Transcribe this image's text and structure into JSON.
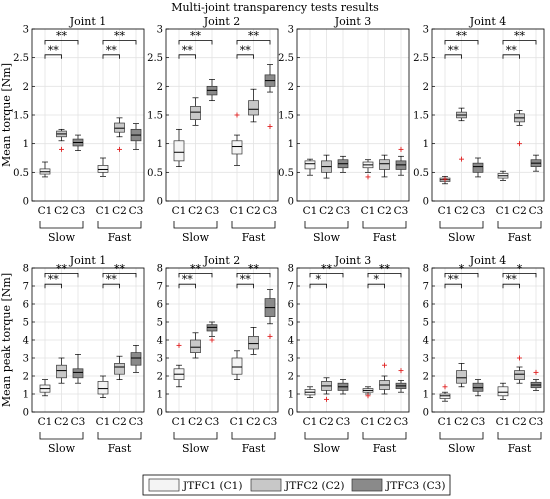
{
  "figure": {
    "title": "Multi-joint transparency tests results",
    "group_labels": [
      "Slow",
      "Fast"
    ],
    "condition_ticks": [
      "C1",
      "C2",
      "C3"
    ],
    "significance_marker": "**",
    "legend": [
      {
        "label": "JTFC1 (C1)",
        "color": "#f4f4f4"
      },
      {
        "label": "JTFC2 (C2)",
        "color": "#c8c8c8"
      },
      {
        "label": "JTFC3 (C3)",
        "color": "#8a8a8a"
      }
    ]
  },
  "chart_data": [
    {
      "type": "box",
      "row": 0,
      "col": 0,
      "title": "Joint 1",
      "ylabel": "Mean torque [Nm]",
      "ylim": [
        0,
        3
      ],
      "yticks": [
        "0",
        "0.5",
        "1",
        "1.5",
        "2",
        "2.5",
        "3"
      ],
      "groups": [
        {
          "name": "Slow",
          "boxes": [
            {
              "condition": "C1",
              "min": 0.42,
              "q1": 0.47,
              "median": 0.51,
              "q3": 0.56,
              "max": 0.68,
              "outliers": []
            },
            {
              "condition": "C2",
              "min": 1.05,
              "q1": 1.12,
              "median": 1.17,
              "q3": 1.22,
              "max": 1.25,
              "outliers": [
                0.9
              ]
            },
            {
              "condition": "C3",
              "min": 0.88,
              "q1": 0.96,
              "median": 1.02,
              "q3": 1.08,
              "max": 1.15,
              "outliers": []
            }
          ]
        },
        {
          "name": "Fast",
          "boxes": [
            {
              "condition": "C1",
              "min": 0.43,
              "q1": 0.5,
              "median": 0.55,
              "q3": 0.62,
              "max": 0.75,
              "outliers": []
            },
            {
              "condition": "C2",
              "min": 1.12,
              "q1": 1.2,
              "median": 1.27,
              "q3": 1.36,
              "max": 1.45,
              "outliers": [
                0.9
              ]
            },
            {
              "condition": "C3",
              "min": 0.9,
              "q1": 1.05,
              "median": 1.15,
              "q3": 1.25,
              "max": 1.35,
              "outliers": []
            }
          ]
        }
      ],
      "brackets": [
        {
          "group": 0,
          "from": 0,
          "to": 1,
          "label": "**",
          "y": 2.55
        },
        {
          "group": 0,
          "from": 0,
          "to": 2,
          "label": "**",
          "y": 2.8
        },
        {
          "group": 1,
          "from": 0,
          "to": 1,
          "label": "**",
          "y": 2.55
        },
        {
          "group": 1,
          "from": 0,
          "to": 2,
          "label": "**",
          "y": 2.8
        }
      ]
    },
    {
      "type": "box",
      "row": 0,
      "col": 1,
      "title": "Joint 2",
      "ylabel": "",
      "ylim": [
        0,
        3
      ],
      "yticks": [
        "0",
        "0.5",
        "1",
        "1.5",
        "2",
        "2.5",
        "3"
      ],
      "groups": [
        {
          "name": "Slow",
          "boxes": [
            {
              "condition": "C1",
              "min": 0.6,
              "q1": 0.7,
              "median": 0.85,
              "q3": 1.05,
              "max": 1.25,
              "outliers": []
            },
            {
              "condition": "C2",
              "min": 1.32,
              "q1": 1.42,
              "median": 1.55,
              "q3": 1.65,
              "max": 1.8,
              "outliers": []
            },
            {
              "condition": "C3",
              "min": 1.75,
              "q1": 1.85,
              "median": 1.93,
              "q3": 2.0,
              "max": 2.12,
              "outliers": []
            }
          ]
        },
        {
          "name": "Fast",
          "boxes": [
            {
              "condition": "C1",
              "min": 0.62,
              "q1": 0.82,
              "median": 0.95,
              "q3": 1.05,
              "max": 1.15,
              "outliers": [
                1.5
              ]
            },
            {
              "condition": "C2",
              "min": 1.38,
              "q1": 1.5,
              "median": 1.6,
              "q3": 1.75,
              "max": 1.95,
              "outliers": []
            },
            {
              "condition": "C3",
              "min": 1.9,
              "q1": 2.0,
              "median": 2.1,
              "q3": 2.2,
              "max": 2.38,
              "outliers": [
                1.3
              ]
            }
          ]
        }
      ],
      "brackets": [
        {
          "group": 0,
          "from": 0,
          "to": 1,
          "label": "**",
          "y": 2.55
        },
        {
          "group": 0,
          "from": 0,
          "to": 2,
          "label": "**",
          "y": 2.8
        },
        {
          "group": 1,
          "from": 0,
          "to": 1,
          "label": "**",
          "y": 2.55
        },
        {
          "group": 1,
          "from": 0,
          "to": 2,
          "label": "**",
          "y": 2.8
        }
      ]
    },
    {
      "type": "box",
      "row": 0,
      "col": 2,
      "title": "Joint 3",
      "ylabel": "",
      "ylim": [
        0,
        3
      ],
      "yticks": [
        "0",
        "0.5",
        "1",
        "1.5",
        "2",
        "2.5",
        "3"
      ],
      "groups": [
        {
          "name": "Slow",
          "boxes": [
            {
              "condition": "C1",
              "min": 0.45,
              "q1": 0.56,
              "median": 0.65,
              "q3": 0.7,
              "max": 0.73,
              "outliers": []
            },
            {
              "condition": "C2",
              "min": 0.4,
              "q1": 0.5,
              "median": 0.6,
              "q3": 0.7,
              "max": 0.8,
              "outliers": []
            },
            {
              "condition": "C3",
              "min": 0.5,
              "q1": 0.58,
              "median": 0.65,
              "q3": 0.72,
              "max": 0.78,
              "outliers": []
            }
          ]
        },
        {
          "name": "Fast",
          "boxes": [
            {
              "condition": "C1",
              "min": 0.5,
              "q1": 0.58,
              "median": 0.63,
              "q3": 0.68,
              "max": 0.72,
              "outliers": [
                0.42
              ]
            },
            {
              "condition": "C2",
              "min": 0.42,
              "q1": 0.55,
              "median": 0.65,
              "q3": 0.72,
              "max": 0.8,
              "outliers": []
            },
            {
              "condition": "C3",
              "min": 0.45,
              "q1": 0.55,
              "median": 0.63,
              "q3": 0.7,
              "max": 0.78,
              "outliers": [
                0.9
              ]
            }
          ]
        }
      ],
      "brackets": []
    },
    {
      "type": "box",
      "row": 0,
      "col": 3,
      "title": "Joint 4",
      "ylabel": "",
      "ylim": [
        0,
        3
      ],
      "yticks": [
        "0",
        "0.5",
        "1",
        "1.5",
        "2",
        "2.5",
        "3"
      ],
      "groups": [
        {
          "name": "Slow",
          "boxes": [
            {
              "condition": "C1",
              "min": 0.3,
              "q1": 0.34,
              "median": 0.37,
              "q3": 0.4,
              "max": 0.43,
              "outliers": [
                0.38
              ]
            },
            {
              "condition": "C2",
              "min": 1.4,
              "q1": 1.45,
              "median": 1.5,
              "q3": 1.55,
              "max": 1.62,
              "outliers": [
                0.73
              ]
            },
            {
              "condition": "C3",
              "min": 0.42,
              "q1": 0.5,
              "median": 0.6,
              "q3": 0.66,
              "max": 0.75,
              "outliers": []
            }
          ]
        },
        {
          "name": "Fast",
          "boxes": [
            {
              "condition": "C1",
              "min": 0.36,
              "q1": 0.4,
              "median": 0.44,
              "q3": 0.48,
              "max": 0.52,
              "outliers": []
            },
            {
              "condition": "C2",
              "min": 1.32,
              "q1": 1.38,
              "median": 1.45,
              "q3": 1.52,
              "max": 1.58,
              "outliers": [
                1.0
              ]
            },
            {
              "condition": "C3",
              "min": 0.52,
              "q1": 0.6,
              "median": 0.66,
              "q3": 0.72,
              "max": 0.8,
              "outliers": []
            }
          ]
        }
      ],
      "brackets": [
        {
          "group": 0,
          "from": 0,
          "to": 1,
          "label": "**",
          "y": 2.55
        },
        {
          "group": 0,
          "from": 0,
          "to": 2,
          "label": "**",
          "y": 2.8
        },
        {
          "group": 1,
          "from": 0,
          "to": 1,
          "label": "**",
          "y": 2.55
        },
        {
          "group": 1,
          "from": 0,
          "to": 2,
          "label": "**",
          "y": 2.8
        }
      ]
    },
    {
      "type": "box",
      "row": 1,
      "col": 0,
      "title": "Joint 1",
      "ylabel": "Mean peak torque [Nm]",
      "ylim": [
        0,
        8
      ],
      "yticks": [
        "0",
        "1",
        "2",
        "3",
        "4",
        "5",
        "6",
        "7",
        "8"
      ],
      "groups": [
        {
          "name": "Slow",
          "boxes": [
            {
              "condition": "C1",
              "min": 0.9,
              "q1": 1.1,
              "median": 1.3,
              "q3": 1.5,
              "max": 1.8,
              "outliers": []
            },
            {
              "condition": "C2",
              "min": 1.6,
              "q1": 1.9,
              "median": 2.3,
              "q3": 2.6,
              "max": 3.0,
              "outliers": []
            },
            {
              "condition": "C3",
              "min": 1.6,
              "q1": 1.9,
              "median": 2.2,
              "q3": 2.4,
              "max": 3.2,
              "outliers": []
            }
          ]
        },
        {
          "name": "Fast",
          "boxes": [
            {
              "condition": "C1",
              "min": 0.8,
              "q1": 1.0,
              "median": 1.3,
              "q3": 1.7,
              "max": 2.0,
              "outliers": []
            },
            {
              "condition": "C2",
              "min": 1.8,
              "q1": 2.1,
              "median": 2.5,
              "q3": 2.7,
              "max": 3.1,
              "outliers": []
            },
            {
              "condition": "C3",
              "min": 2.2,
              "q1": 2.6,
              "median": 3.0,
              "q3": 3.3,
              "max": 3.7,
              "outliers": []
            }
          ]
        }
      ],
      "brackets": [
        {
          "group": 0,
          "from": 0,
          "to": 1,
          "label": "**",
          "y": 7.1
        },
        {
          "group": 0,
          "from": 0,
          "to": 2,
          "label": "**",
          "y": 7.7
        },
        {
          "group": 1,
          "from": 0,
          "to": 1,
          "label": "**",
          "y": 7.1
        },
        {
          "group": 1,
          "from": 0,
          "to": 2,
          "label": "**",
          "y": 7.7
        }
      ]
    },
    {
      "type": "box",
      "row": 1,
      "col": 1,
      "title": "Joint 2",
      "ylabel": "",
      "ylim": [
        0,
        8
      ],
      "yticks": [
        "0",
        "1",
        "2",
        "3",
        "4",
        "5",
        "6",
        "7",
        "8"
      ],
      "groups": [
        {
          "name": "Slow",
          "boxes": [
            {
              "condition": "C1",
              "min": 1.4,
              "q1": 1.8,
              "median": 2.1,
              "q3": 2.4,
              "max": 2.6,
              "outliers": [
                3.7
              ]
            },
            {
              "condition": "C2",
              "min": 3.0,
              "q1": 3.3,
              "median": 3.6,
              "q3": 4.0,
              "max": 4.4,
              "outliers": []
            },
            {
              "condition": "C3",
              "min": 4.2,
              "q1": 4.5,
              "median": 4.7,
              "q3": 4.85,
              "max": 5.0,
              "outliers": [
                4.0
              ]
            }
          ]
        },
        {
          "name": "Fast",
          "boxes": [
            {
              "condition": "C1",
              "min": 1.8,
              "q1": 2.1,
              "median": 2.5,
              "q3": 3.0,
              "max": 3.4,
              "outliers": []
            },
            {
              "condition": "C2",
              "min": 3.2,
              "q1": 3.5,
              "median": 3.8,
              "q3": 4.2,
              "max": 4.7,
              "outliers": []
            },
            {
              "condition": "C3",
              "min": 4.9,
              "q1": 5.3,
              "median": 5.8,
              "q3": 6.3,
              "max": 6.8,
              "outliers": [
                4.2
              ]
            }
          ]
        }
      ],
      "brackets": [
        {
          "group": 0,
          "from": 0,
          "to": 1,
          "label": "**",
          "y": 7.1
        },
        {
          "group": 0,
          "from": 0,
          "to": 2,
          "label": "**",
          "y": 7.7
        },
        {
          "group": 1,
          "from": 0,
          "to": 1,
          "label": "**",
          "y": 7.1
        },
        {
          "group": 1,
          "from": 0,
          "to": 2,
          "label": "**",
          "y": 7.7
        }
      ]
    },
    {
      "type": "box",
      "row": 1,
      "col": 2,
      "title": "Joint 3",
      "ylabel": "",
      "ylim": [
        0,
        8
      ],
      "yticks": [
        "0",
        "1",
        "2",
        "3",
        "4",
        "5",
        "6",
        "7",
        "8"
      ],
      "groups": [
        {
          "name": "Slow",
          "boxes": [
            {
              "condition": "C1",
              "min": 0.8,
              "q1": 0.95,
              "median": 1.1,
              "q3": 1.25,
              "max": 1.4,
              "outliers": []
            },
            {
              "condition": "C2",
              "min": 1.0,
              "q1": 1.2,
              "median": 1.45,
              "q3": 1.7,
              "max": 1.9,
              "outliers": [
                0.7
              ]
            },
            {
              "condition": "C3",
              "min": 1.0,
              "q1": 1.2,
              "median": 1.4,
              "q3": 1.6,
              "max": 1.8,
              "outliers": []
            }
          ]
        },
        {
          "name": "Fast",
          "boxes": [
            {
              "condition": "C1",
              "min": 1.0,
              "q1": 1.1,
              "median": 1.2,
              "q3": 1.3,
              "max": 1.4,
              "outliers": [
                0.9
              ]
            },
            {
              "condition": "C2",
              "min": 1.0,
              "q1": 1.25,
              "median": 1.5,
              "q3": 1.75,
              "max": 2.0,
              "outliers": [
                2.6
              ]
            },
            {
              "condition": "C3",
              "min": 1.1,
              "q1": 1.3,
              "median": 1.45,
              "q3": 1.6,
              "max": 1.75,
              "outliers": [
                2.3
              ]
            }
          ]
        }
      ],
      "brackets": [
        {
          "group": 0,
          "from": 0,
          "to": 1,
          "label": "*",
          "y": 7.1
        },
        {
          "group": 0,
          "from": 0,
          "to": 2,
          "label": "**",
          "y": 7.7
        },
        {
          "group": 1,
          "from": 0,
          "to": 1,
          "label": "*",
          "y": 7.1
        },
        {
          "group": 1,
          "from": 0,
          "to": 2,
          "label": "**",
          "y": 7.7
        }
      ]
    },
    {
      "type": "box",
      "row": 1,
      "col": 3,
      "title": "Joint 4",
      "ylabel": "",
      "ylim": [
        0,
        8
      ],
      "yticks": [
        "0",
        "1",
        "2",
        "3",
        "4",
        "5",
        "6",
        "7",
        "8"
      ],
      "groups": [
        {
          "name": "Slow",
          "boxes": [
            {
              "condition": "C1",
              "min": 0.6,
              "q1": 0.75,
              "median": 0.9,
              "q3": 1.0,
              "max": 1.1,
              "outliers": [
                1.4
              ]
            },
            {
              "condition": "C2",
              "min": 1.4,
              "q1": 1.6,
              "median": 1.9,
              "q3": 2.3,
              "max": 2.7,
              "outliers": []
            },
            {
              "condition": "C3",
              "min": 0.9,
              "q1": 1.15,
              "median": 1.35,
              "q3": 1.6,
              "max": 1.8,
              "outliers": []
            }
          ]
        },
        {
          "name": "Fast",
          "boxes": [
            {
              "condition": "C1",
              "min": 0.7,
              "q1": 0.9,
              "median": 1.1,
              "q3": 1.4,
              "max": 1.6,
              "outliers": []
            },
            {
              "condition": "C2",
              "min": 1.6,
              "q1": 1.8,
              "median": 2.1,
              "q3": 2.3,
              "max": 2.5,
              "outliers": [
                3.0
              ]
            },
            {
              "condition": "C3",
              "min": 1.2,
              "q1": 1.35,
              "median": 1.5,
              "q3": 1.65,
              "max": 1.8,
              "outliers": [
                2.2
              ]
            }
          ]
        }
      ],
      "brackets": [
        {
          "group": 0,
          "from": 0,
          "to": 1,
          "label": "**",
          "y": 7.1
        },
        {
          "group": 0,
          "from": 0,
          "to": 2,
          "label": "*",
          "y": 7.7
        },
        {
          "group": 1,
          "from": 0,
          "to": 1,
          "label": "**",
          "y": 7.1
        },
        {
          "group": 1,
          "from": 0,
          "to": 2,
          "label": "*",
          "y": 7.7
        }
      ]
    }
  ]
}
